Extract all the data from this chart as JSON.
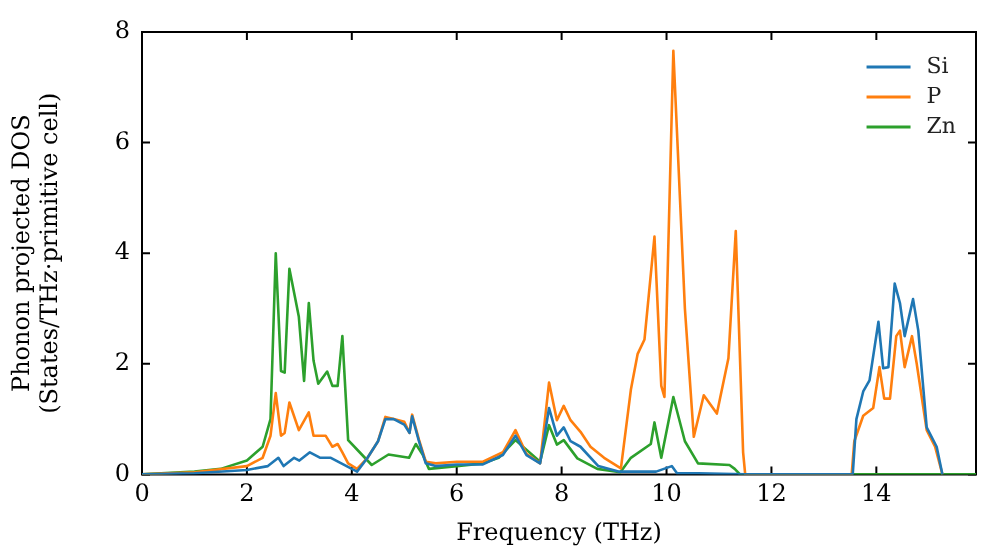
{
  "chart_data": {
    "type": "line",
    "xlabel": "Frequency (THz)",
    "ylabel": "Phonon projected DOS\n(States/THz·primitive cell)",
    "xlim": [
      0,
      15.9
    ],
    "ylim": [
      0,
      8
    ],
    "xticks": [
      0,
      2,
      4,
      6,
      8,
      10,
      12,
      14
    ],
    "yticks": [
      0,
      2,
      4,
      6,
      8
    ],
    "grid": false,
    "legend": "top right",
    "marker": "none",
    "line_style": "solid",
    "series": [
      {
        "name": "Si",
        "color": "#1f77b4",
        "x": [
          0,
          1,
          2,
          2.4,
          2.6,
          2.7,
          2.9,
          3.0,
          3.2,
          3.4,
          3.6,
          3.9,
          4.1,
          4.3,
          4.5,
          4.64,
          4.8,
          5.0,
          5.1,
          5.15,
          5.28,
          5.41,
          5.6,
          6.0,
          6.5,
          6.88,
          7.12,
          7.33,
          7.59,
          7.76,
          7.91,
          8.04,
          8.17,
          8.36,
          8.7,
          9.1,
          9.8,
          10.1,
          10.2,
          10.6,
          11.5,
          13.55,
          13.62,
          13.75,
          13.87,
          14.04,
          14.13,
          14.23,
          14.35,
          14.45,
          14.54,
          14.7,
          14.8,
          14.96,
          15.15,
          15.26
        ],
        "values": [
          0,
          0.02,
          0.08,
          0.15,
          0.3,
          0.15,
          0.3,
          0.25,
          0.4,
          0.3,
          0.3,
          0.15,
          0.05,
          0.3,
          0.6,
          1.0,
          1.0,
          0.9,
          0.75,
          1.05,
          0.6,
          0.2,
          0.15,
          0.18,
          0.18,
          0.35,
          0.7,
          0.35,
          0.2,
          1.2,
          0.7,
          0.85,
          0.6,
          0.5,
          0.15,
          0.05,
          0.05,
          0.15,
          0.02,
          0.02,
          0,
          0,
          1.0,
          1.5,
          1.7,
          2.76,
          1.92,
          1.94,
          3.45,
          3.1,
          2.5,
          3.17,
          2.6,
          0.85,
          0.5,
          0
        ]
      },
      {
        "name": "P",
        "color": "#ff7f0e",
        "x": [
          0,
          1,
          2,
          2.3,
          2.45,
          2.55,
          2.65,
          2.72,
          2.81,
          2.99,
          3.18,
          3.27,
          3.5,
          3.63,
          3.73,
          3.82,
          3.93,
          4.1,
          4.3,
          4.5,
          4.64,
          4.8,
          5.0,
          5.1,
          5.15,
          5.28,
          5.41,
          5.6,
          6.0,
          6.5,
          6.88,
          7.12,
          7.33,
          7.59,
          7.76,
          7.91,
          8.04,
          8.17,
          8.36,
          8.55,
          8.81,
          9.13,
          9.32,
          9.45,
          9.58,
          9.77,
          9.9,
          9.96,
          10.13,
          10.35,
          10.52,
          10.71,
          10.96,
          11.18,
          11.32,
          11.46,
          11.5,
          13.53,
          13.58,
          13.75,
          13.94,
          14.06,
          14.15,
          14.26,
          14.38,
          14.45,
          14.54,
          14.68,
          14.77,
          14.96,
          15.12,
          15.26
        ],
        "values": [
          0,
          0.04,
          0.15,
          0.3,
          0.7,
          1.47,
          0.7,
          0.75,
          1.3,
          0.8,
          1.12,
          0.7,
          0.7,
          0.5,
          0.55,
          0.4,
          0.2,
          0.1,
          0.3,
          0.6,
          1.04,
          1.0,
          0.95,
          0.75,
          1.08,
          0.63,
          0.23,
          0.2,
          0.23,
          0.23,
          0.4,
          0.8,
          0.37,
          0.2,
          1.66,
          0.98,
          1.24,
          0.98,
          0.77,
          0.5,
          0.3,
          0.11,
          1.53,
          2.18,
          2.44,
          4.3,
          1.6,
          1.4,
          7.66,
          3.0,
          0.68,
          1.43,
          1.1,
          2.1,
          4.4,
          0.4,
          0,
          0,
          0.6,
          1.06,
          1.2,
          1.94,
          1.37,
          1.37,
          2.5,
          2.6,
          1.94,
          2.5,
          2.0,
          0.8,
          0.5,
          0
        ]
      },
      {
        "name": "Zn",
        "color": "#2ca02c",
        "x": [
          0,
          1,
          1.5,
          2,
          2.3,
          2.45,
          2.55,
          2.65,
          2.72,
          2.81,
          2.99,
          3.09,
          3.18,
          3.27,
          3.36,
          3.53,
          3.63,
          3.73,
          3.82,
          3.93,
          4.19,
          4.38,
          4.7,
          5.09,
          5.22,
          5.35,
          5.47,
          6.0,
          6.5,
          6.8,
          7.12,
          7.59,
          7.76,
          7.91,
          8.04,
          8.3,
          8.68,
          9.12,
          9.32,
          9.7,
          9.77,
          9.9,
          10.13,
          10.35,
          10.6,
          11.2,
          11.3,
          11.4,
          15.9
        ],
        "values": [
          0,
          0.05,
          0.1,
          0.25,
          0.5,
          1.0,
          4.0,
          1.87,
          1.84,
          3.72,
          2.85,
          1.69,
          3.1,
          2.06,
          1.64,
          1.86,
          1.6,
          1.6,
          2.5,
          0.62,
          0.36,
          0.17,
          0.36,
          0.3,
          0.55,
          0.36,
          0.1,
          0.15,
          0.2,
          0.3,
          0.62,
          0.23,
          0.89,
          0.54,
          0.62,
          0.29,
          0.1,
          0.04,
          0.3,
          0.55,
          0.94,
          0.3,
          1.4,
          0.6,
          0.2,
          0.17,
          0.1,
          0,
          0
        ]
      }
    ]
  }
}
